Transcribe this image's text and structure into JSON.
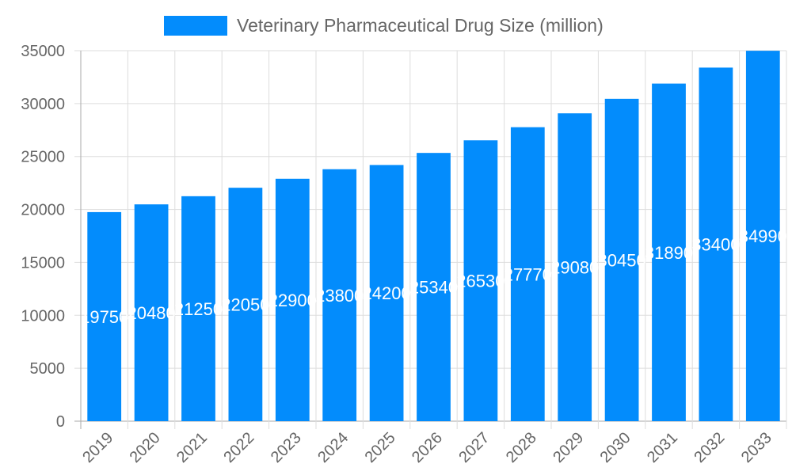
{
  "chart_data": {
    "type": "bar",
    "categories": [
      "2019",
      "2020",
      "2021",
      "2022",
      "2023",
      "2024",
      "2025",
      "2026",
      "2027",
      "2028",
      "2029",
      "2030",
      "2031",
      "2032",
      "2033"
    ],
    "series": [
      {
        "name": "Veterinary Pharmaceutical Drug Size (million)",
        "values": [
          19750,
          20480,
          21250,
          22050,
          22900,
          23800,
          24200,
          25340,
          26530,
          27770,
          29080,
          30450,
          31890,
          33400,
          34990
        ],
        "color": "#038cfc"
      }
    ],
    "ylim": [
      0,
      35000
    ],
    "yticks": [
      0,
      5000,
      10000,
      15000,
      20000,
      25000,
      30000,
      35000
    ],
    "grid": true,
    "legend": "top",
    "data_labels": true,
    "xlabel": "",
    "ylabel": "",
    "title": ""
  }
}
